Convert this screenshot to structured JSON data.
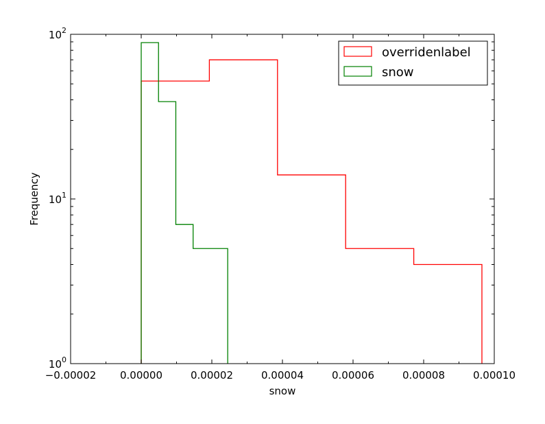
{
  "chart_data": {
    "type": "step-histogram",
    "title": "",
    "xlabel": "snow",
    "ylabel": "Frequency",
    "xlim": [
      -2e-05,
      0.0001
    ],
    "ylim": [
      1,
      100
    ],
    "yscale": "log",
    "grid": false,
    "legend_position": "top-right",
    "x_ticks": [
      {
        "value": -2e-05,
        "label": "−0.00002"
      },
      {
        "value": 0.0,
        "label": "0.00000"
      },
      {
        "value": 2e-05,
        "label": "0.00002"
      },
      {
        "value": 4e-05,
        "label": "0.00004"
      },
      {
        "value": 6e-05,
        "label": "0.00006"
      },
      {
        "value": 8e-05,
        "label": "0.00008"
      },
      {
        "value": 0.0001,
        "label": "0.00010"
      }
    ],
    "y_ticks": [
      {
        "value": 1,
        "base": "10",
        "exp": "0"
      },
      {
        "value": 10,
        "base": "10",
        "exp": "1"
      },
      {
        "value": 100,
        "base": "10",
        "exp": "2"
      }
    ],
    "series": [
      {
        "name": "overridenlabel",
        "color": "#ff0000",
        "edges": [
          0.0,
          1.93e-05,
          3.86e-05,
          5.79e-05,
          7.72e-05,
          9.65e-05
        ],
        "counts": [
          52,
          70,
          14,
          5,
          4
        ]
      },
      {
        "name": "snow",
        "color": "#008000",
        "edges": [
          0.0,
          4.9e-06,
          9.8e-06,
          1.47e-05,
          1.96e-05,
          2.45e-05
        ],
        "counts": [
          89,
          39,
          7,
          5,
          5
        ]
      }
    ]
  }
}
